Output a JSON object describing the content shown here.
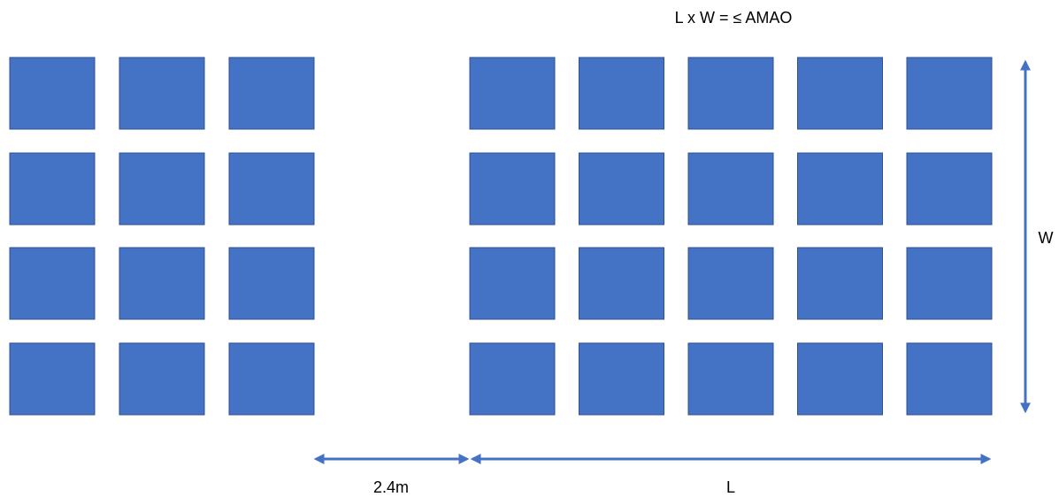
{
  "diagram": {
    "formula": "L x W = ≤ AMAO",
    "gap_label": "2.4m",
    "length_label": "L",
    "width_label": "W",
    "colors": {
      "block_fill": "#4472C4",
      "block_stroke": "#2F528F",
      "arrow": "#4472C4",
      "text": "#000000"
    },
    "blocks": {
      "left_group": {
        "rows": 4,
        "columns": 3
      },
      "right_group": {
        "rows": 4,
        "columns": 5
      }
    }
  }
}
